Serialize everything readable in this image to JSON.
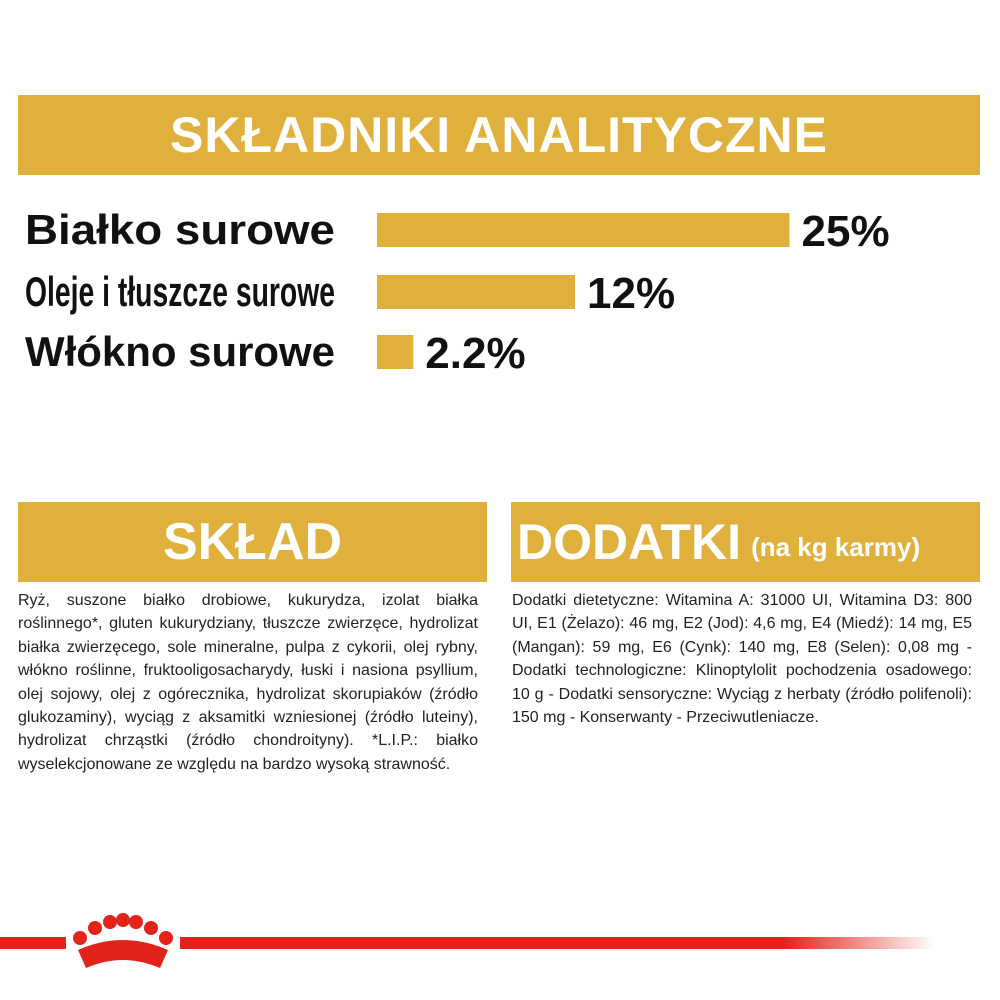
{
  "header": {
    "title": "SKŁADNIKI ANALITYCZNE"
  },
  "chart_data": {
    "type": "bar",
    "categories": [
      "Białko surowe",
      "Oleje i tłuszcze surowe",
      "Włókno surowe"
    ],
    "values": [
      25,
      12,
      2.2
    ],
    "value_labels": [
      "25%",
      "12%",
      "2.2%"
    ],
    "color": "#dfb13c"
  },
  "composition": {
    "title": "SKŁAD",
    "text": "Ryż, suszone białko drobiowe, kukurydza, izolat białka roślinnego*, gluten kukurydziany, tłuszcze zwierzęce, hydrolizat białka zwierzęcego, sole mineralne, pulpa z cykorii, olej rybny, włókno roślinne, fruktooligosacharydy, łuski i nasiona psyllium, olej sojowy, olej z ogórecznika, hydrolizat skorupiaków (źródło glukozaminy), wyciąg z aksamitki wzniesionej (źródło luteiny), hydrolizat chrząstki (źródło chondroityny). *L.I.P.: białko wyselekcjonowane ze względu na bardzo wysoką strawność."
  },
  "additives": {
    "title": "DODATKI",
    "subtitle": "(na kg karmy)",
    "text": "Dodatki dietetyczne: Witamina A: 31000 UI, Witamina D3: 800 UI, E1 (Żelazo): 46 mg, E2 (Jod): 4,6 mg, E4 (Miedź): 14 mg, E5 (Mangan): 59 mg, E6 (Cynk): 140 mg, E8 (Selen): 0,08 mg - Dodatki technologiczne: Klinoptylolit pochodzenia osadowego: 10 g - Dodatki sensoryczne: Wyciąg z herbaty (źródło polifenoli): 150 mg - Konserwanty - Przeciwutleniacze."
  }
}
